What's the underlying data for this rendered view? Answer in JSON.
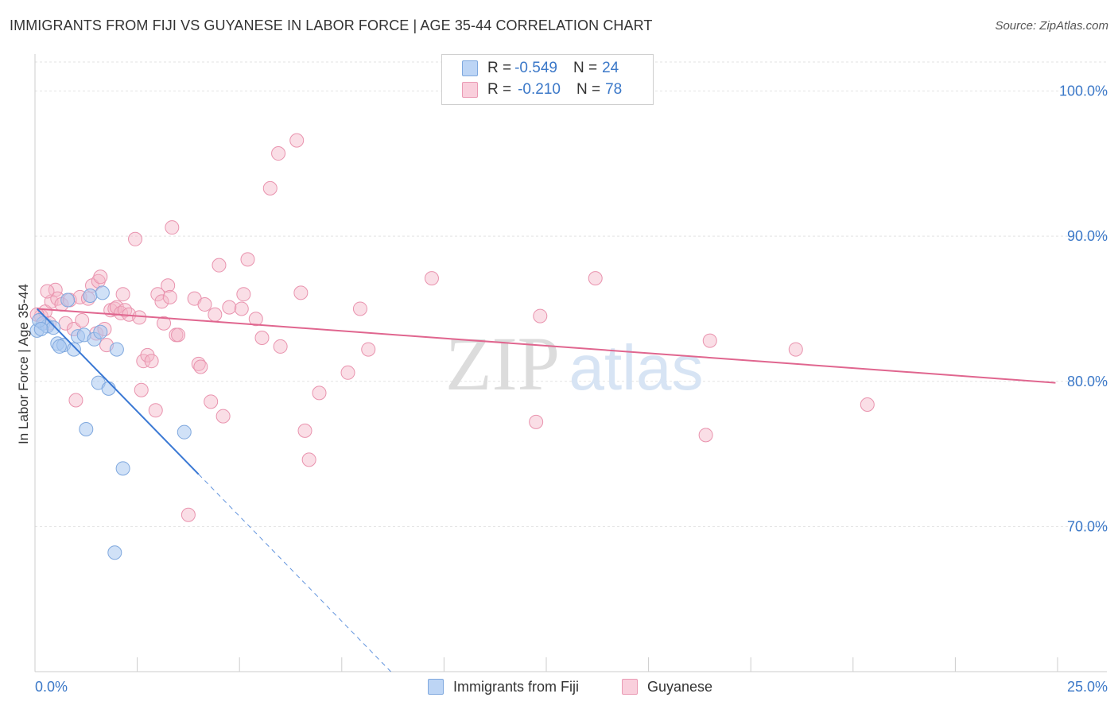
{
  "title": "IMMIGRANTS FROM FIJI VS GUYANESE IN LABOR FORCE | AGE 35-44 CORRELATION CHART",
  "source": "Source: ZipAtlas.com",
  "legend": {
    "rows": [
      {
        "r_label": "R = ",
        "r_value": "-0.549",
        "n_label": "N = ",
        "n_value": "24"
      },
      {
        "r_label": "R = ",
        "r_value": "-0.210",
        "n_label": "N = ",
        "n_value": "78"
      }
    ]
  },
  "watermark": {
    "zip": "ZIP",
    "atlas": "atlas"
  },
  "colors": {
    "fiji": "#a9c8f0",
    "fiji_line": "#3a78d4",
    "guyanese": "#f4b6c8",
    "guyanese_line": "#e0668f",
    "tick_label": "#3b78c8"
  },
  "chart_data": {
    "type": "scatter",
    "xlabel": "",
    "ylabel": "In Labor Force | Age 35-44",
    "xlim": [
      0,
      25
    ],
    "ylim": [
      60,
      102
    ],
    "x_tick_labels": [
      "0.0%",
      "25.0%"
    ],
    "y_ticks": [
      70,
      80,
      90,
      100
    ],
    "y_tick_labels": [
      "70.0%",
      "80.0%",
      "90.0%",
      "100.0%"
    ],
    "grid": true,
    "legend_position": "top-center",
    "series": [
      {
        "name": "Immigrants from Fiji",
        "color": "#a9c8f0",
        "points": [
          [
            0.05,
            83.5
          ],
          [
            0.2,
            84.0
          ],
          [
            0.3,
            83.8
          ],
          [
            0.45,
            83.7
          ],
          [
            0.55,
            82.6
          ],
          [
            0.7,
            82.5
          ],
          [
            0.8,
            85.6
          ],
          [
            0.95,
            82.2
          ],
          [
            1.05,
            83.1
          ],
          [
            1.2,
            83.2
          ],
          [
            1.25,
            76.7
          ],
          [
            1.35,
            85.9
          ],
          [
            1.45,
            82.9
          ],
          [
            1.55,
            79.9
          ],
          [
            1.6,
            83.4
          ],
          [
            1.65,
            86.1
          ],
          [
            1.8,
            79.5
          ],
          [
            1.95,
            68.2
          ],
          [
            2.0,
            82.2
          ],
          [
            2.15,
            74.0
          ],
          [
            3.65,
            76.5
          ],
          [
            0.1,
            84.2
          ],
          [
            0.6,
            82.4
          ],
          [
            0.15,
            83.6
          ]
        ],
        "trend": {
          "x0": 0.05,
          "y0": 85.0,
          "x1": 4.0,
          "y1": 73.6,
          "dash_to_x": 8.7,
          "dash_to_y": 60.0
        }
      },
      {
        "name": "Guyanese",
        "color": "#f4b6c8",
        "points": [
          [
            0.15,
            84.5
          ],
          [
            0.25,
            84.8
          ],
          [
            0.35,
            84.0
          ],
          [
            0.4,
            85.5
          ],
          [
            0.5,
            86.3
          ],
          [
            0.55,
            85.7
          ],
          [
            0.65,
            85.3
          ],
          [
            0.75,
            84.0
          ],
          [
            0.85,
            85.6
          ],
          [
            0.95,
            83.6
          ],
          [
            1.0,
            78.7
          ],
          [
            1.1,
            85.8
          ],
          [
            1.15,
            84.2
          ],
          [
            1.3,
            85.7
          ],
          [
            1.4,
            86.6
          ],
          [
            1.5,
            83.3
          ],
          [
            1.55,
            86.9
          ],
          [
            1.6,
            87.2
          ],
          [
            1.7,
            83.6
          ],
          [
            1.75,
            82.5
          ],
          [
            1.85,
            84.9
          ],
          [
            1.95,
            85.0
          ],
          [
            2.0,
            85.1
          ],
          [
            2.1,
            84.7
          ],
          [
            2.15,
            86.0
          ],
          [
            2.2,
            84.9
          ],
          [
            2.3,
            84.6
          ],
          [
            2.45,
            89.8
          ],
          [
            2.55,
            84.4
          ],
          [
            2.6,
            79.4
          ],
          [
            2.65,
            81.4
          ],
          [
            2.75,
            81.8
          ],
          [
            2.85,
            81.4
          ],
          [
            2.95,
            78.0
          ],
          [
            3.0,
            86.0
          ],
          [
            3.1,
            85.5
          ],
          [
            3.15,
            84.0
          ],
          [
            3.25,
            86.6
          ],
          [
            3.3,
            85.8
          ],
          [
            3.35,
            90.6
          ],
          [
            3.45,
            83.2
          ],
          [
            3.5,
            83.2
          ],
          [
            3.75,
            70.8
          ],
          [
            3.9,
            85.7
          ],
          [
            4.0,
            81.2
          ],
          [
            4.05,
            81.0
          ],
          [
            4.15,
            85.3
          ],
          [
            4.3,
            78.6
          ],
          [
            4.4,
            84.6
          ],
          [
            4.5,
            88.0
          ],
          [
            4.6,
            77.6
          ],
          [
            4.75,
            85.1
          ],
          [
            5.05,
            85.0
          ],
          [
            5.1,
            86.0
          ],
          [
            5.2,
            88.4
          ],
          [
            5.4,
            84.3
          ],
          [
            5.55,
            83.0
          ],
          [
            5.75,
            93.3
          ],
          [
            5.95,
            95.7
          ],
          [
            6.0,
            82.4
          ],
          [
            6.4,
            96.6
          ],
          [
            6.5,
            86.1
          ],
          [
            6.6,
            76.6
          ],
          [
            6.7,
            74.6
          ],
          [
            6.95,
            79.2
          ],
          [
            7.65,
            80.6
          ],
          [
            7.95,
            85.0
          ],
          [
            8.15,
            82.2
          ],
          [
            9.7,
            87.1
          ],
          [
            12.25,
            77.2
          ],
          [
            12.35,
            84.5
          ],
          [
            13.7,
            87.1
          ],
          [
            16.4,
            76.3
          ],
          [
            16.5,
            82.8
          ],
          [
            18.6,
            82.2
          ],
          [
            20.35,
            78.4
          ],
          [
            0.05,
            84.6
          ],
          [
            0.3,
            86.2
          ]
        ],
        "trend": {
          "x0": 0.05,
          "y0": 85.0,
          "x1": 24.95,
          "y1": 79.9
        }
      }
    ]
  }
}
